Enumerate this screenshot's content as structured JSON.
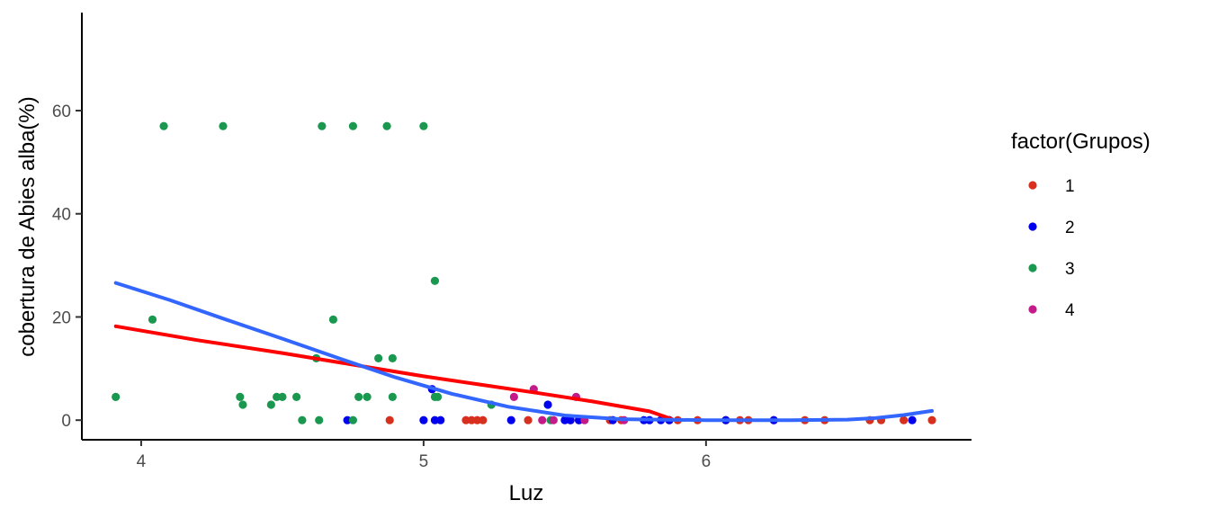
{
  "chart_data": {
    "type": "scatter",
    "title": "",
    "xlabel": "Luz",
    "ylabel": "cobertura de Abies alba(%)",
    "xlim": [
      3.79,
      6.94
    ],
    "ylim": [
      -3.8,
      79
    ],
    "x_ticks": [
      4,
      5,
      6
    ],
    "x_tick_labels": [
      "4",
      "5",
      "6"
    ],
    "y_ticks": [
      0,
      20,
      40,
      60
    ],
    "y_tick_labels": [
      "0",
      "20",
      "40",
      "60"
    ],
    "grid": false,
    "legend": {
      "title": "factor(Grupos)",
      "placement": "right",
      "entries": [
        {
          "label": "1",
          "color": "#d7301f"
        },
        {
          "label": "2",
          "color": "#0000ee"
        },
        {
          "label": "3",
          "color": "#1a9850"
        },
        {
          "label": "4",
          "color": "#c51b8a"
        }
      ]
    },
    "series": [
      {
        "name": "1",
        "color": "#d7301f",
        "points": [
          [
            4.88,
            0
          ],
          [
            5.15,
            0
          ],
          [
            5.17,
            0
          ],
          [
            5.19,
            0
          ],
          [
            5.21,
            0
          ],
          [
            5.37,
            0
          ],
          [
            5.52,
            0
          ],
          [
            5.55,
            0
          ],
          [
            5.66,
            0
          ],
          [
            5.7,
            0
          ],
          [
            5.87,
            0
          ],
          [
            5.9,
            0
          ],
          [
            5.97,
            0
          ],
          [
            6.07,
            0
          ],
          [
            6.12,
            0
          ],
          [
            6.15,
            0
          ],
          [
            6.24,
            0
          ],
          [
            6.35,
            0
          ],
          [
            6.42,
            0
          ],
          [
            6.58,
            0
          ],
          [
            6.62,
            0
          ],
          [
            6.7,
            0
          ],
          [
            6.8,
            0
          ]
        ]
      },
      {
        "name": "2",
        "color": "#0000ee",
        "points": [
          [
            4.73,
            0
          ],
          [
            5.0,
            0
          ],
          [
            5.03,
            6
          ],
          [
            5.04,
            0
          ],
          [
            5.06,
            0
          ],
          [
            5.31,
            0
          ],
          [
            5.44,
            3
          ],
          [
            5.5,
            0
          ],
          [
            5.52,
            0
          ],
          [
            5.55,
            0
          ],
          [
            5.67,
            0
          ],
          [
            5.78,
            0
          ],
          [
            5.8,
            0
          ],
          [
            5.84,
            0
          ],
          [
            5.87,
            0
          ],
          [
            6.07,
            0
          ],
          [
            6.24,
            0
          ],
          [
            6.73,
            0
          ]
        ]
      },
      {
        "name": "3",
        "color": "#1a9850",
        "points": [
          [
            3.91,
            4.5
          ],
          [
            4.04,
            19.5
          ],
          [
            4.08,
            57
          ],
          [
            4.29,
            57
          ],
          [
            4.35,
            4.5
          ],
          [
            4.36,
            3
          ],
          [
            4.46,
            3
          ],
          [
            4.48,
            4.5
          ],
          [
            4.5,
            4.5
          ],
          [
            4.55,
            4.5
          ],
          [
            4.57,
            0
          ],
          [
            4.62,
            12
          ],
          [
            4.63,
            0
          ],
          [
            4.64,
            57
          ],
          [
            4.68,
            19.5
          ],
          [
            4.75,
            0
          ],
          [
            4.75,
            57
          ],
          [
            4.77,
            4.5
          ],
          [
            4.8,
            4.5
          ],
          [
            4.84,
            12
          ],
          [
            4.87,
            57
          ],
          [
            4.89,
            12
          ],
          [
            4.89,
            4.5
          ],
          [
            5.0,
            57
          ],
          [
            5.04,
            27
          ],
          [
            5.04,
            4.5
          ],
          [
            5.05,
            4.5
          ],
          [
            5.24,
            3
          ],
          [
            5.45,
            0
          ]
        ]
      },
      {
        "name": "4",
        "color": "#c51b8a",
        "points": [
          [
            5.32,
            4.5
          ],
          [
            5.39,
            6
          ],
          [
            5.42,
            0
          ],
          [
            5.46,
            0
          ],
          [
            5.54,
            4.5
          ],
          [
            5.57,
            0
          ],
          [
            5.71,
            0
          ]
        ]
      }
    ],
    "trend_lines": [
      {
        "color": "#ff0000",
        "points": [
          [
            3.91,
            18.2
          ],
          [
            4.2,
            15.5
          ],
          [
            4.5,
            13.0
          ],
          [
            4.8,
            10.3
          ],
          [
            5.0,
            8.5
          ],
          [
            5.2,
            6.9
          ],
          [
            5.4,
            5.3
          ],
          [
            5.6,
            3.6
          ],
          [
            5.8,
            1.7
          ],
          [
            5.88,
            0.2
          ]
        ]
      },
      {
        "color": "#3366ff",
        "points": [
          [
            3.91,
            26.6
          ],
          [
            4.1,
            23.3
          ],
          [
            4.3,
            19.5
          ],
          [
            4.5,
            15.8
          ],
          [
            4.7,
            12.0
          ],
          [
            4.9,
            8.3
          ],
          [
            5.1,
            5.1
          ],
          [
            5.3,
            2.6
          ],
          [
            5.5,
            0.9
          ],
          [
            5.7,
            0.2
          ],
          [
            6.0,
            0
          ],
          [
            6.3,
            0
          ],
          [
            6.5,
            0.1
          ],
          [
            6.6,
            0.4
          ],
          [
            6.7,
            1.0
          ],
          [
            6.8,
            1.8
          ]
        ]
      }
    ]
  }
}
